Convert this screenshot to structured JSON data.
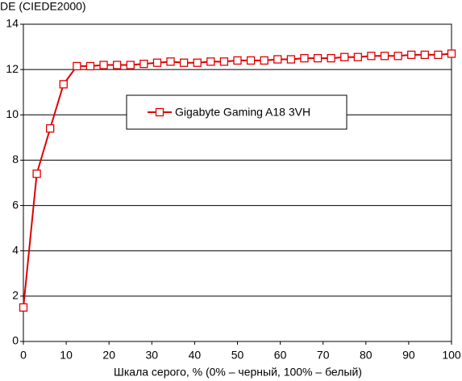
{
  "chart_data": {
    "type": "line",
    "y_label": "DE (CIEDE2000)",
    "x_label": "Шкала серого, % (0% – черный, 100% – белый)",
    "x": [
      0,
      3.125,
      6.25,
      9.375,
      12.5,
      15.625,
      18.75,
      21.875,
      25,
      28.125,
      31.25,
      34.375,
      37.5,
      40.625,
      43.75,
      46.875,
      50,
      53.125,
      56.25,
      59.375,
      62.5,
      65.625,
      68.75,
      71.875,
      75,
      78.125,
      81.25,
      84.375,
      87.5,
      90.625,
      93.75,
      96.875,
      100
    ],
    "series": [
      {
        "name": "Gigabyte Gaming A18 3VH",
        "color": "#e00000",
        "values": [
          1.5,
          7.4,
          9.4,
          11.35,
          12.15,
          12.15,
          12.2,
          12.2,
          12.2,
          12.25,
          12.3,
          12.35,
          12.3,
          12.3,
          12.35,
          12.35,
          12.4,
          12.4,
          12.4,
          12.45,
          12.45,
          12.5,
          12.5,
          12.5,
          12.55,
          12.55,
          12.6,
          12.6,
          12.6,
          12.65,
          12.65,
          12.65,
          12.7
        ]
      }
    ],
    "xlim": [
      0,
      100
    ],
    "xticks": [
      0,
      10,
      20,
      30,
      40,
      50,
      60,
      70,
      80,
      90,
      100
    ],
    "ylim": [
      0,
      14
    ],
    "yticks": [
      0,
      2,
      4,
      6,
      8,
      10,
      12,
      14
    ],
    "grid": true
  }
}
